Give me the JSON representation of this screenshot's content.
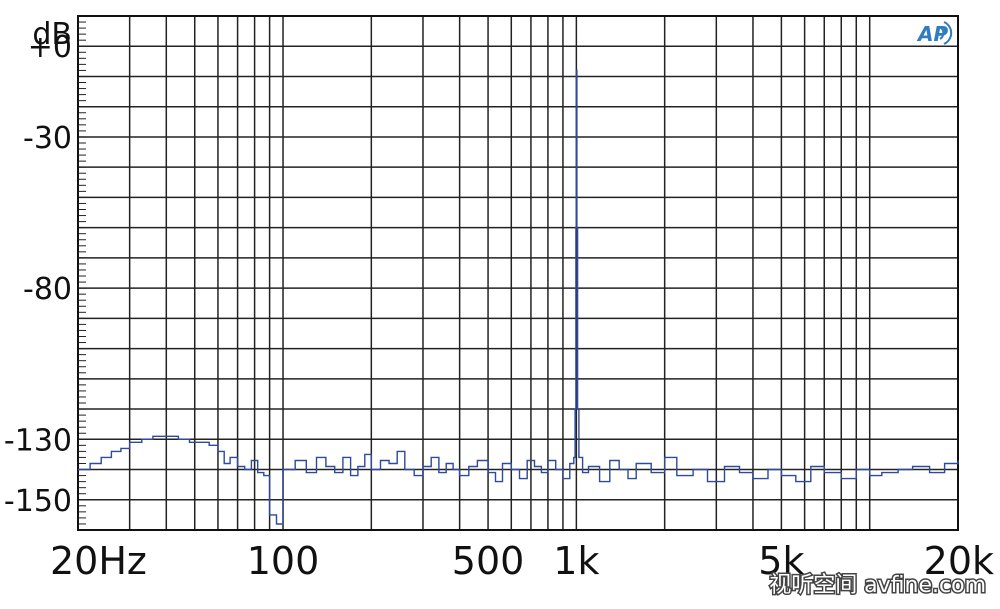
{
  "chart_data": {
    "type": "line",
    "title": "",
    "xlabel": "",
    "ylabel": "dB",
    "x_scale": "log",
    "xlim": [
      20,
      20000
    ],
    "ylim": [
      -160,
      10
    ],
    "grid": true,
    "y_unit_label": "dB",
    "y_ticks": [
      {
        "value": 0,
        "label": "+0"
      },
      {
        "value": -30,
        "label": "-30"
      },
      {
        "value": -80,
        "label": "-80"
      },
      {
        "value": -130,
        "label": "-130"
      },
      {
        "value": -150,
        "label": "-150"
      }
    ],
    "x_ticks": [
      {
        "value": 20,
        "label": "20Hz"
      },
      {
        "value": 100,
        "label": "100"
      },
      {
        "value": 500,
        "label": "500"
      },
      {
        "value": 1000,
        "label": "1k"
      },
      {
        "value": 5000,
        "label": "5k"
      },
      {
        "value": 20000,
        "label": "20k"
      }
    ],
    "series": [
      {
        "color": "#2e4a99",
        "x": [
          20,
          22,
          24,
          26,
          28,
          30,
          33,
          36,
          40,
          44,
          48,
          52,
          56,
          60,
          63,
          66,
          70,
          74,
          78,
          82,
          86,
          90,
          95,
          100,
          110,
          120,
          130,
          140,
          150,
          160,
          170,
          180,
          190,
          200,
          215,
          230,
          245,
          260,
          280,
          300,
          320,
          340,
          360,
          380,
          400,
          430,
          460,
          500,
          530,
          560,
          600,
          640,
          680,
          720,
          760,
          800,
          850,
          900,
          950,
          980,
          990,
          996,
          1000,
          1004,
          1010,
          1020,
          1050,
          1100,
          1200,
          1300,
          1400,
          1500,
          1600,
          1800,
          2000,
          2200,
          2500,
          2800,
          3200,
          3600,
          4000,
          4500,
          5000,
          5600,
          6300,
          7000,
          8000,
          9000,
          10000,
          11000,
          12500,
          14000,
          16000,
          18000,
          20000
        ],
        "y": [
          -140,
          -138,
          -136,
          -134,
          -133,
          -131,
          -130,
          -129,
          -129,
          -130,
          -131,
          -131,
          -132,
          -134,
          -138,
          -136,
          -139,
          -140,
          -137,
          -141,
          -142,
          -155,
          -158,
          -140,
          -137,
          -141,
          -136,
          -139,
          -141,
          -136,
          -142,
          -139,
          -135,
          -140,
          -137,
          -138,
          -134,
          -140,
          -142,
          -139,
          -136,
          -141,
          -138,
          -140,
          -142,
          -139,
          -137,
          -141,
          -144,
          -138,
          -140,
          -143,
          -137,
          -139,
          -141,
          -137,
          -140,
          -143,
          -138,
          -136,
          -120,
          -60,
          -8,
          -60,
          -120,
          -136,
          -141,
          -139,
          -144,
          -137,
          -140,
          -143,
          -138,
          -141,
          -136,
          -142,
          -140,
          -144,
          -139,
          -141,
          -143,
          -140,
          -142,
          -144,
          -139,
          -141,
          -143,
          -140,
          -142,
          -141,
          -140,
          -139,
          -141,
          -138,
          -137
        ]
      }
    ],
    "annotations": [
      "AP"
    ]
  },
  "logo": {
    "text": "AP",
    "color": "#2f7dc0"
  },
  "watermark": {
    "text": "视听空间 avfine.com"
  }
}
